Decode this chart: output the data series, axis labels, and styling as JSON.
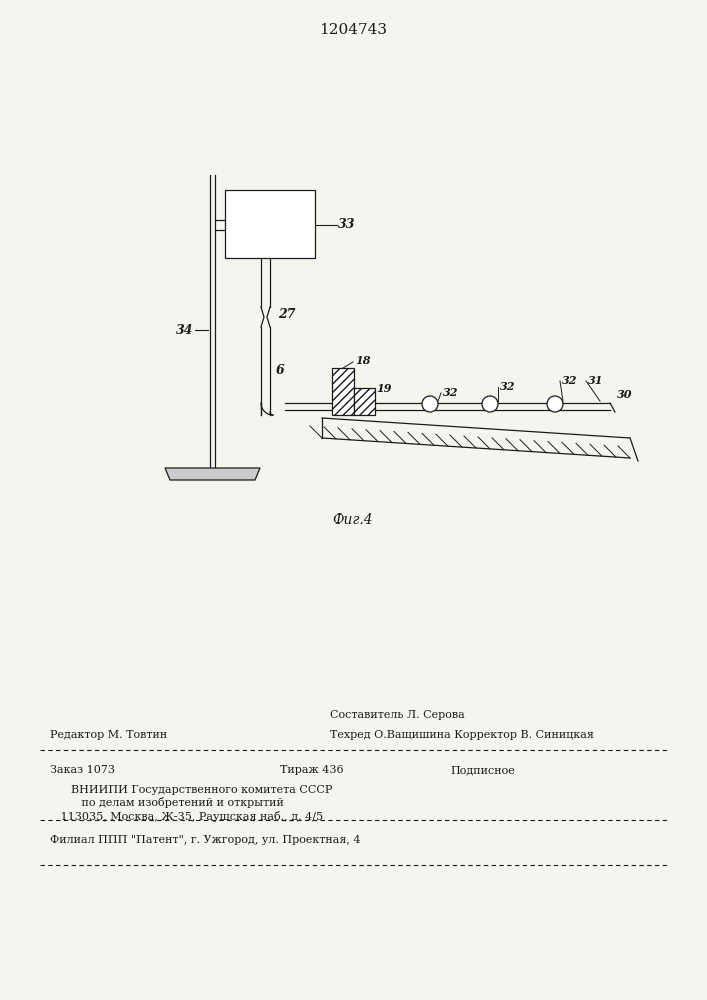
{
  "patent_number": "1204743",
  "fig_label": "Фиг.4",
  "bg_color": "#f5f5f0",
  "line_color": "#1a1a1a",
  "footer_line1_left": "Редактор М. Товтин",
  "footer_line1_center": "Составитель Л. Серова",
  "footer_line2": "Техред О.Ващишина Корректор В. Синицкая",
  "footer_zakaz": "Заказ 1073",
  "footer_tirazh": "Тираж 436",
  "footer_podp": "Подписное",
  "footer_vniip1": "      ВНИИПИ Государственного комитета СССР",
  "footer_vniip2": "         по делам изобретений и открытий",
  "footer_addr": "   113035, Москва, Ж-35, Раушская наб., д. 4/5",
  "footer_filial": "Филиал ППП \"Патент\", г. Ужгород, ул. Проектная, 4"
}
